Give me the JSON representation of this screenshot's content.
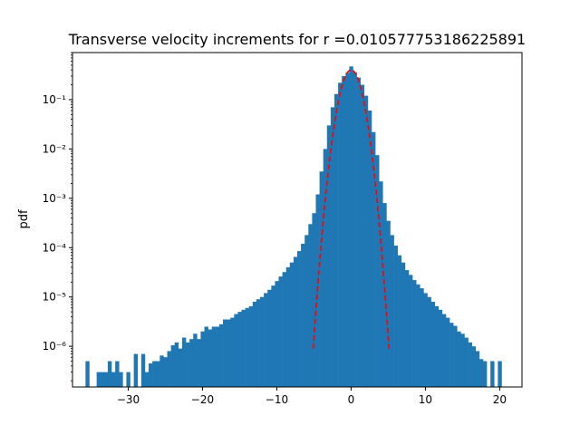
{
  "chart_data": {
    "type": "bar",
    "title": "Transverse velocity increments for r =0.010577753186225891",
    "xlabel": "",
    "ylabel": "pdf",
    "xlim": [
      -37.5,
      23.0
    ],
    "ylim": [
      1.5e-07,
      0.9
    ],
    "yscale": "log",
    "grid": false,
    "x_ticks": [
      -30,
      -20,
      -10,
      0,
      10,
      20
    ],
    "x_tick_labels": [
      "−30",
      "−20",
      "−10",
      "0",
      "10",
      "20"
    ],
    "y_ticks": [
      1e-06,
      1e-05,
      0.0001,
      0.001,
      0.01,
      0.1
    ],
    "y_tick_labels": [
      "10⁻⁶",
      "10⁻⁵",
      "10⁻⁴",
      "10⁻³",
      "10⁻²",
      "10⁻¹"
    ],
    "bar_color": "#1f77b4",
    "bin_width": 0.5,
    "histogram": {
      "x": [
        -35.5,
        -34.0,
        -33.5,
        -33.0,
        -32.5,
        -32.0,
        -31.5,
        -31.0,
        -30.0,
        -29.0,
        -28.0,
        -27.5,
        -27.0,
        -26.5,
        -26.0,
        -25.5,
        -25.0,
        -24.5,
        -24.0,
        -23.5,
        -23.0,
        -22.5,
        -22.0,
        -21.5,
        -21.0,
        -20.5,
        -20.0,
        -19.5,
        -19.0,
        -18.5,
        -18.0,
        -17.5,
        -17.0,
        -16.5,
        -16.0,
        -15.5,
        -15.0,
        -14.5,
        -14.0,
        -13.5,
        -13.0,
        -12.5,
        -12.0,
        -11.5,
        -11.0,
        -10.5,
        -10.0,
        -9.5,
        -9.0,
        -8.5,
        -8.0,
        -7.5,
        -7.0,
        -6.5,
        -6.0,
        -5.5,
        -5.0,
        -4.5,
        -4.0,
        -3.5,
        -3.0,
        -2.5,
        -2.0,
        -1.5,
        -1.0,
        -0.5,
        0.0,
        0.5,
        1.0,
        1.5,
        2.0,
        2.5,
        3.0,
        3.5,
        4.0,
        4.5,
        5.0,
        5.5,
        6.0,
        6.5,
        7.0,
        7.5,
        8.0,
        8.5,
        9.0,
        9.5,
        10.0,
        10.5,
        11.0,
        11.5,
        12.0,
        12.5,
        13.0,
        13.5,
        14.0,
        14.5,
        15.0,
        15.5,
        16.0,
        16.5,
        17.0,
        17.5,
        18.0,
        19.0,
        20.0
      ],
      "y": [
        5e-07,
        3e-07,
        3e-07,
        3e-07,
        5e-07,
        3e-07,
        5e-07,
        3e-07,
        3e-07,
        7e-07,
        7e-07,
        3e-07,
        4.5e-07,
        5e-07,
        5e-07,
        6.5e-07,
        6e-07,
        8e-07,
        1.05e-06,
        1.2e-06,
        9e-07,
        1.5e-06,
        1.2e-06,
        1.4e-06,
        1.8e-06,
        1.4e-06,
        2e-06,
        2.5e-06,
        2.2e-06,
        2.5e-06,
        2.5e-06,
        2.8e-06,
        3.5e-06,
        3.5e-06,
        3.8e-06,
        4.5e-06,
        5e-06,
        5.5e-06,
        6e-06,
        6.5e-06,
        8e-06,
        9e-06,
        1e-05,
        1.2e-05,
        1.4e-05,
        1.7e-05,
        2.1e-05,
        2.6e-05,
        3.2e-05,
        4e-05,
        5e-05,
        6.5e-05,
        8.5e-05,
        0.00012,
        0.00018,
        0.0003,
        0.0005,
        0.0012,
        0.0035,
        0.01,
        0.03,
        0.07,
        0.13,
        0.22,
        0.3,
        0.35,
        0.47,
        0.36,
        0.28,
        0.2,
        0.12,
        0.06,
        0.022,
        0.0075,
        0.0022,
        0.0008,
        0.00035,
        0.00018,
        0.00011,
        7e-05,
        5e-05,
        3.5e-05,
        2.8e-05,
        2.2e-05,
        1.8e-05,
        1.5e-05,
        1.2e-05,
        1e-05,
        8e-06,
        6.5e-06,
        5.5e-06,
        4.5e-06,
        3.8e-06,
        3e-06,
        2.6e-06,
        2e-06,
        1.8e-06,
        1.5e-06,
        1.2e-06,
        1e-06,
        8e-07,
        5.5e-07,
        5e-07,
        5e-07,
        5e-07
      ]
    },
    "gaussian_fit": {
      "color": "#ff0000",
      "style": "dashed",
      "x_range": [
        -5.1,
        5.1
      ],
      "peak": 0.4,
      "sigma": 1.0
    }
  }
}
